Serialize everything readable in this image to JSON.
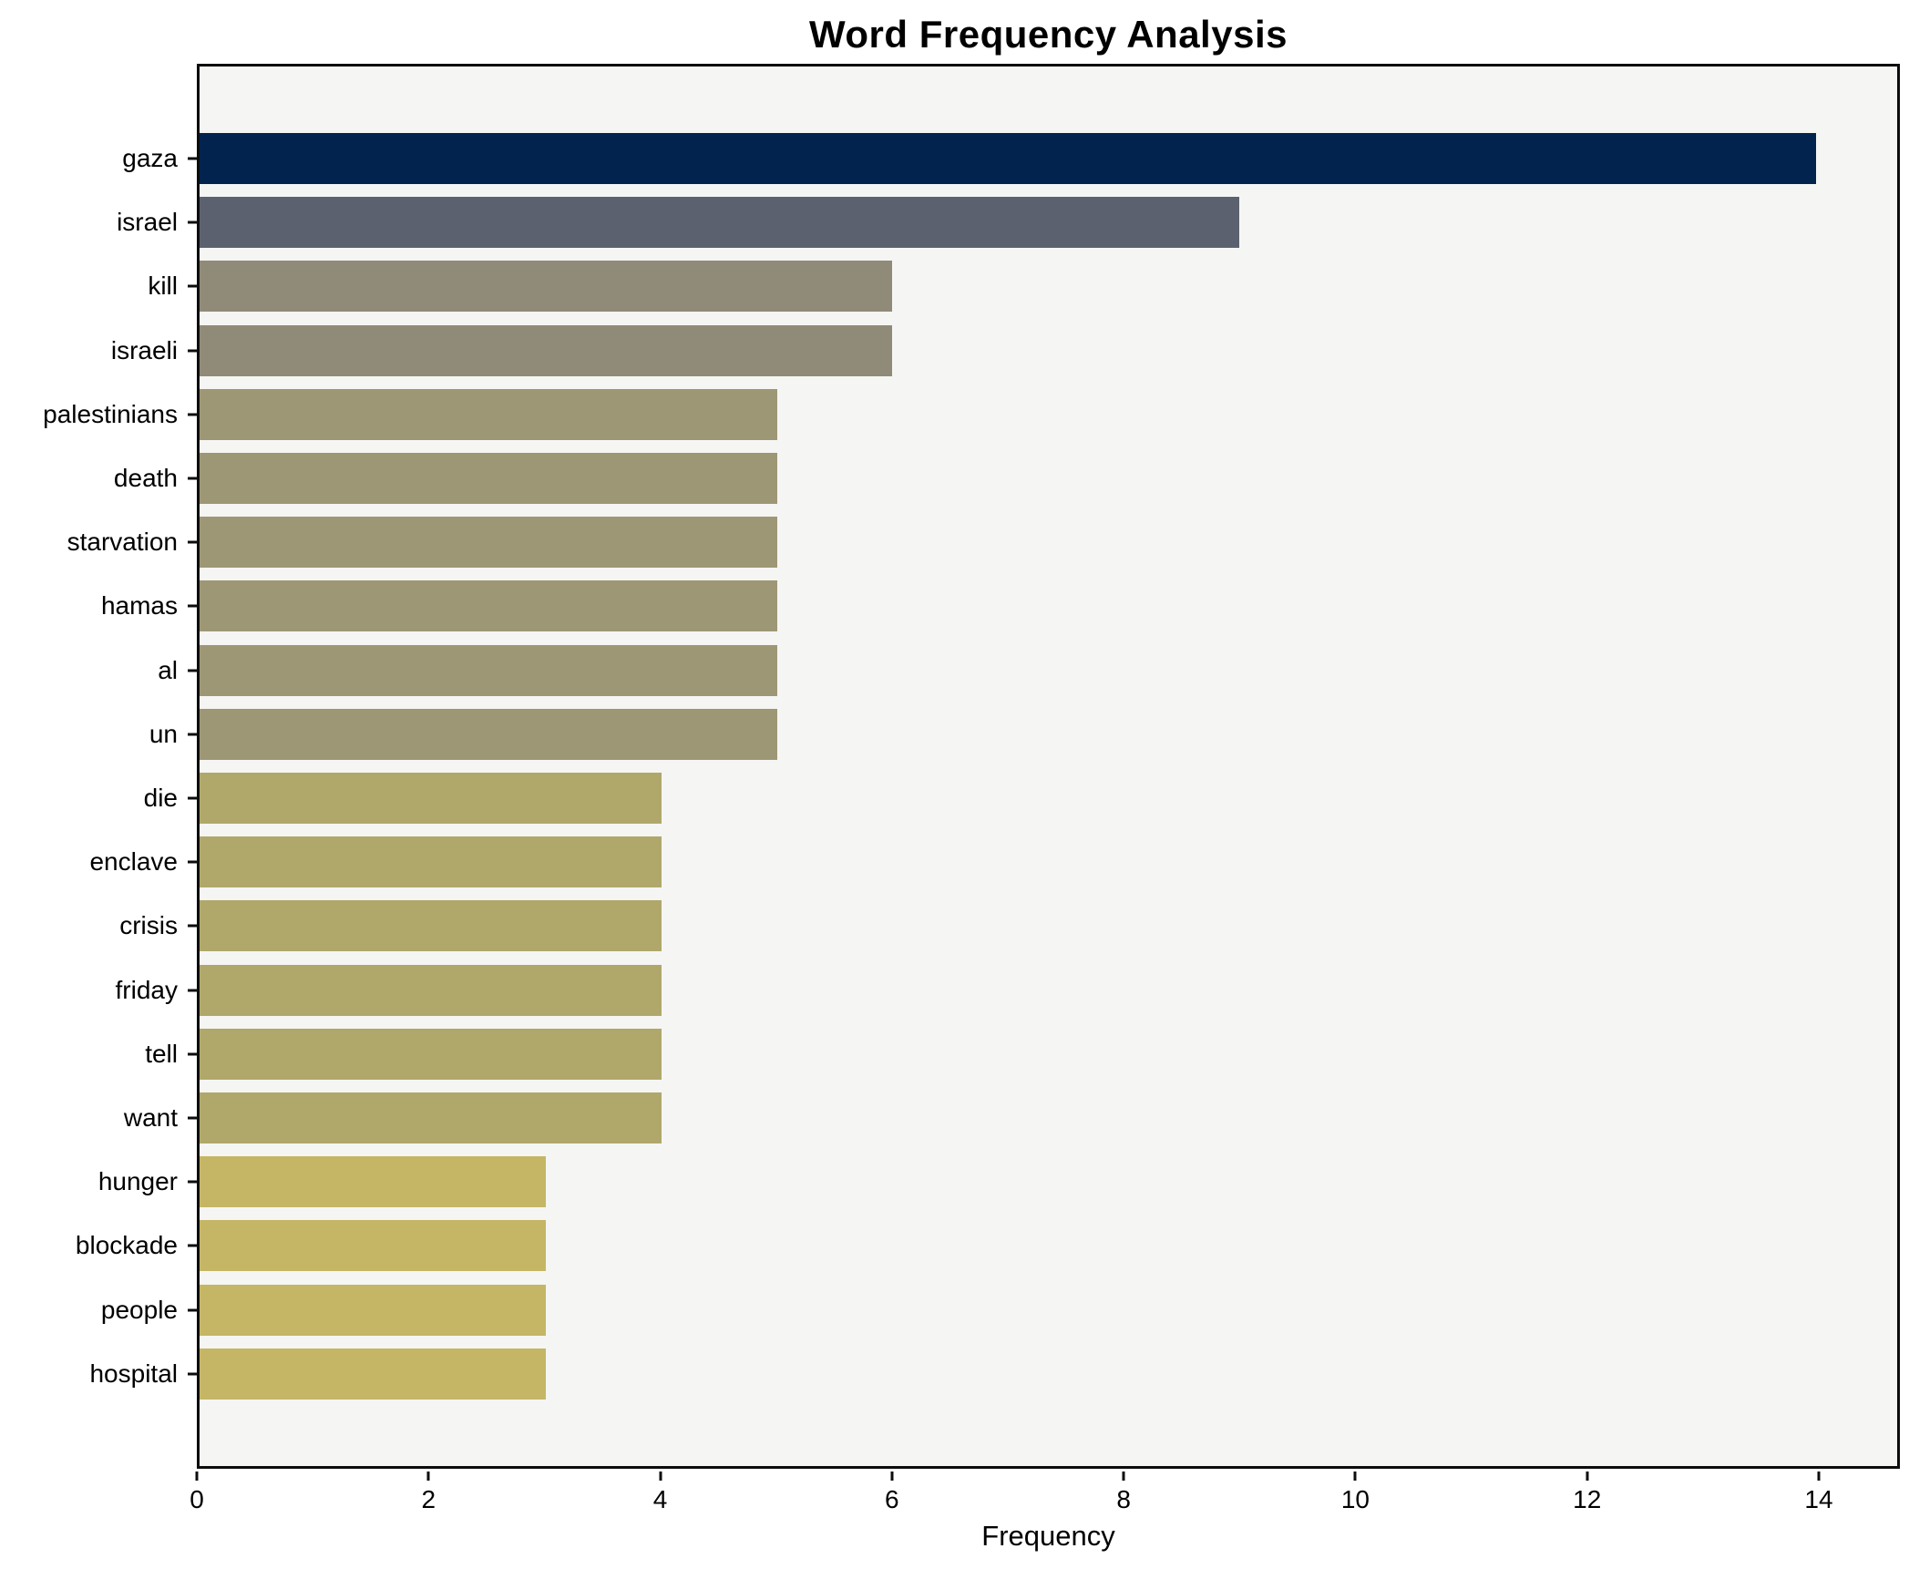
{
  "title": "Word Frequency Analysis",
  "chart_data": {
    "type": "bar",
    "orientation": "horizontal",
    "title": "Word Frequency Analysis",
    "xlabel": "Frequency",
    "ylabel": "",
    "categories": [
      "gaza",
      "israel",
      "kill",
      "israeli",
      "palestinians",
      "death",
      "starvation",
      "hamas",
      "al",
      "un",
      "die",
      "enclave",
      "crisis",
      "friday",
      "tell",
      "want",
      "hunger",
      "blockade",
      "people",
      "hospital"
    ],
    "values": [
      14,
      9,
      6,
      6,
      5,
      5,
      5,
      5,
      5,
      5,
      4,
      4,
      4,
      4,
      4,
      4,
      3,
      3,
      3,
      3
    ],
    "bar_colors": [
      "#02234e",
      "#5c6170",
      "#908a78",
      "#908a78",
      "#9e9775",
      "#9e9775",
      "#9e9775",
      "#9e9775",
      "#9e9775",
      "#9e9775",
      "#b0a76b",
      "#b0a76b",
      "#b0a76b",
      "#b0a76b",
      "#b0a76b",
      "#b0a76b",
      "#c5b666",
      "#c5b666",
      "#c5b666",
      "#c5b666"
    ],
    "xticks": [
      0,
      2,
      4,
      6,
      8,
      10,
      12,
      14
    ],
    "xlim": [
      0,
      14.7
    ],
    "grid": false,
    "legend": "none",
    "plot_background": "#f5f5f3",
    "figure_background": "#ffffff",
    "spine_color": "#0d0d0d"
  }
}
